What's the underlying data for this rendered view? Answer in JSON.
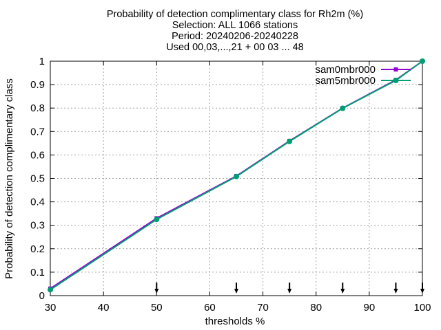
{
  "chart_data": {
    "type": "line",
    "title_lines": [
      "Probability of detection complimentary class  for Rh2m (%)",
      "Selection: ALL   1066 stations",
      "Period: 20240206-20240228",
      "Used 00,03,...,21 + 00 03 ... 48"
    ],
    "xlabel": "thresholds %",
    "ylabel": "Probability of detection complimentary class",
    "xlim": [
      30,
      100
    ],
    "ylim": [
      0,
      1
    ],
    "x_ticks": [
      "30",
      "40",
      "50",
      "60",
      "70",
      "80",
      "90",
      "100"
    ],
    "y_ticks": [
      "0",
      "0.1",
      "0.2",
      "0.3",
      "0.4",
      "0.5",
      "0.6",
      "0.7",
      "0.8",
      "0.9",
      "1"
    ],
    "grid": true,
    "legend_position": "top-right",
    "series": [
      {
        "name": "sam0mbr000",
        "color": "#9400d3",
        "marker": "square",
        "x": [
          30,
          50,
          65,
          75,
          85,
          95,
          100
        ],
        "y": [
          0.03,
          0.33,
          0.51,
          0.66,
          0.8,
          0.92,
          1.0
        ]
      },
      {
        "name": "sam5mbr000",
        "color": "#009e73",
        "marker": "circle",
        "x": [
          30,
          50,
          65,
          75,
          85,
          95,
          100
        ],
        "y": [
          0.025,
          0.325,
          0.508,
          0.658,
          0.799,
          0.918,
          1.0
        ]
      }
    ],
    "threshold_arrows_x": [
      50,
      65,
      75,
      85,
      95,
      100
    ]
  }
}
